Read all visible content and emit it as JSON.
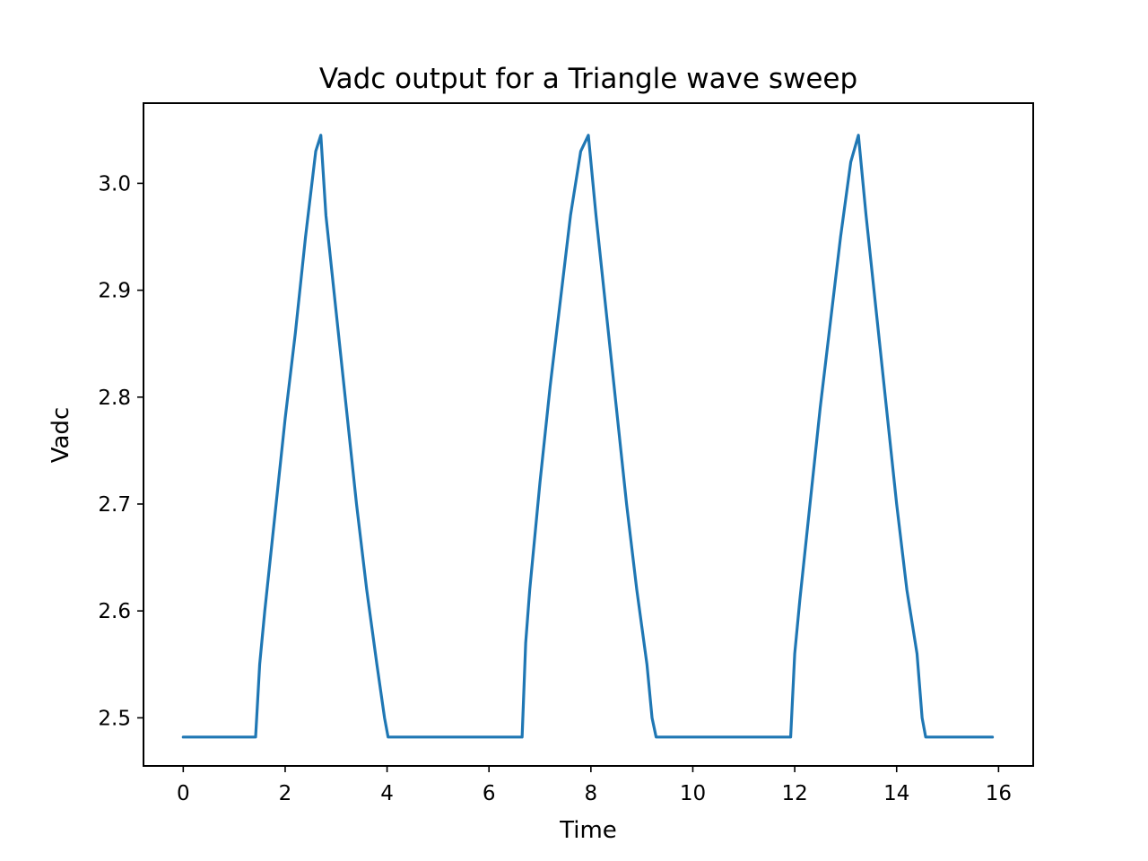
{
  "chart_data": {
    "type": "line",
    "title": "Vadc output for a Triangle wave sweep",
    "xlabel": "Time",
    "ylabel": "Vadc",
    "xlim": [
      -0.78,
      16.68
    ],
    "ylim": [
      2.455,
      3.075
    ],
    "xticks": [
      0,
      2,
      4,
      6,
      8,
      10,
      12,
      14,
      16
    ],
    "yticks": [
      2.5,
      2.6,
      2.7,
      2.8,
      2.9,
      3.0
    ],
    "ytick_labels": [
      "2.5",
      "2.6",
      "2.7",
      "2.8",
      "2.9",
      "3.0"
    ],
    "grid": false,
    "legend": false,
    "series_color": "#1f77b4",
    "series": [
      {
        "x": [
          0,
          0.5,
          1.0,
          1.42,
          1.5,
          1.6,
          1.8,
          2.0,
          2.2,
          2.4,
          2.6,
          2.7,
          2.8,
          3.0,
          3.2,
          3.4,
          3.6,
          3.8,
          3.95,
          4.02,
          4.1,
          5.0,
          6.0,
          6.65,
          6.72,
          6.8,
          7.0,
          7.2,
          7.4,
          7.6,
          7.8,
          7.95,
          8.1,
          8.3,
          8.5,
          8.7,
          8.9,
          9.1,
          9.2,
          9.28,
          9.35,
          10.0,
          11.0,
          11.92,
          12.0,
          12.1,
          12.3,
          12.5,
          12.7,
          12.9,
          13.1,
          13.25,
          13.4,
          13.6,
          13.8,
          14.0,
          14.2,
          14.4,
          14.5,
          14.57,
          14.65,
          15.0,
          15.5,
          15.88
        ],
        "y": [
          2.482,
          2.482,
          2.482,
          2.482,
          2.55,
          2.6,
          2.69,
          2.78,
          2.86,
          2.95,
          3.03,
          3.045,
          2.97,
          2.88,
          2.79,
          2.7,
          2.62,
          2.55,
          2.5,
          2.482,
          2.482,
          2.482,
          2.482,
          2.482,
          2.57,
          2.62,
          2.72,
          2.81,
          2.89,
          2.97,
          3.03,
          3.045,
          2.97,
          2.88,
          2.79,
          2.7,
          2.62,
          2.55,
          2.5,
          2.482,
          2.482,
          2.482,
          2.482,
          2.482,
          2.56,
          2.61,
          2.7,
          2.79,
          2.87,
          2.95,
          3.02,
          3.045,
          2.97,
          2.88,
          2.79,
          2.7,
          2.62,
          2.56,
          2.5,
          2.482,
          2.482,
          2.482,
          2.482,
          2.482
        ]
      }
    ]
  }
}
